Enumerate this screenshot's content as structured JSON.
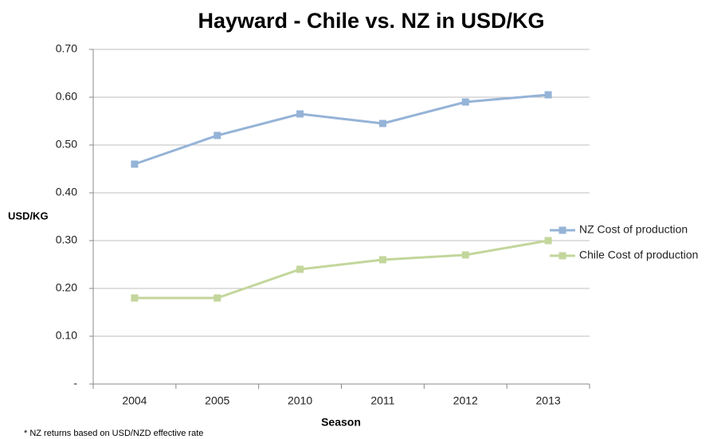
{
  "chart_data": {
    "type": "line",
    "title": "Hayward - Chile vs. NZ in USD/KG",
    "xlabel": "Season",
    "ylabel": "USD/KG",
    "footnote": "* NZ returns based on USD/NZD effective rate",
    "categories": [
      "2004",
      "2005",
      "2010",
      "2011",
      "2012",
      "2013"
    ],
    "series": [
      {
        "name": "NZ Cost of production",
        "color": "#95b3d7",
        "values": [
          0.46,
          0.52,
          0.565,
          0.545,
          0.59,
          0.605
        ]
      },
      {
        "name": "Chile Cost of production",
        "color": "#c3d69b",
        "values": [
          0.18,
          0.18,
          0.24,
          0.26,
          0.27,
          0.3
        ]
      }
    ],
    "ylim": [
      0,
      0.7
    ],
    "yticks": [
      {
        "value": 0,
        "label": "-"
      },
      {
        "value": 0.1,
        "label": "0.10"
      },
      {
        "value": 0.2,
        "label": "0.20"
      },
      {
        "value": 0.3,
        "label": "0.30"
      },
      {
        "value": 0.4,
        "label": "0.40"
      },
      {
        "value": 0.5,
        "label": "0.50"
      },
      {
        "value": 0.6,
        "label": "0.60"
      },
      {
        "value": 0.7,
        "label": "0.70"
      }
    ],
    "grid": true,
    "legend": "right"
  }
}
